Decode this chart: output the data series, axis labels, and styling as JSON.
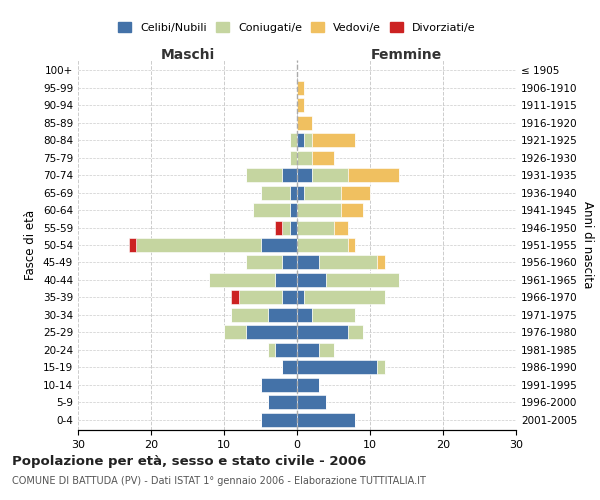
{
  "age_groups": [
    "0-4",
    "5-9",
    "10-14",
    "15-19",
    "20-24",
    "25-29",
    "30-34",
    "35-39",
    "40-44",
    "45-49",
    "50-54",
    "55-59",
    "60-64",
    "65-69",
    "70-74",
    "75-79",
    "80-84",
    "85-89",
    "90-94",
    "95-99",
    "100+"
  ],
  "birth_years": [
    "2001-2005",
    "1996-2000",
    "1991-1995",
    "1986-1990",
    "1981-1985",
    "1976-1980",
    "1971-1975",
    "1966-1970",
    "1961-1965",
    "1956-1960",
    "1951-1955",
    "1946-1950",
    "1941-1945",
    "1936-1940",
    "1931-1935",
    "1926-1930",
    "1921-1925",
    "1916-1920",
    "1911-1915",
    "1906-1910",
    "≤ 1905"
  ],
  "colors": {
    "celibi": "#4472a8",
    "coniugati": "#c5d5a0",
    "vedovi": "#f0c060",
    "divorziati": "#cc2222"
  },
  "male": {
    "celibi": [
      5,
      4,
      5,
      2,
      3,
      7,
      4,
      2,
      3,
      2,
      5,
      1,
      1,
      1,
      2,
      0,
      0,
      0,
      0,
      0,
      0
    ],
    "coniugati": [
      0,
      0,
      0,
      0,
      1,
      3,
      5,
      6,
      9,
      5,
      17,
      1,
      5,
      4,
      5,
      1,
      1,
      0,
      0,
      0,
      0
    ],
    "vedovi": [
      0,
      0,
      0,
      0,
      0,
      0,
      0,
      0,
      0,
      0,
      0,
      0,
      0,
      0,
      0,
      0,
      0,
      0,
      0,
      0,
      0
    ],
    "divorziati": [
      0,
      0,
      0,
      0,
      0,
      0,
      0,
      1,
      0,
      0,
      1,
      1,
      0,
      0,
      0,
      0,
      0,
      0,
      0,
      0,
      0
    ]
  },
  "female": {
    "nubili": [
      8,
      4,
      3,
      11,
      3,
      7,
      2,
      1,
      4,
      3,
      0,
      0,
      0,
      1,
      2,
      0,
      1,
      0,
      0,
      0,
      0
    ],
    "coniugati": [
      0,
      0,
      0,
      1,
      2,
      2,
      6,
      11,
      10,
      8,
      7,
      5,
      6,
      5,
      5,
      2,
      1,
      0,
      0,
      0,
      0
    ],
    "vedovi": [
      0,
      0,
      0,
      0,
      0,
      0,
      0,
      0,
      0,
      1,
      1,
      2,
      3,
      4,
      7,
      3,
      6,
      2,
      1,
      1,
      0
    ],
    "divorziati": [
      0,
      0,
      0,
      0,
      0,
      0,
      0,
      0,
      0,
      0,
      0,
      0,
      0,
      0,
      0,
      0,
      0,
      0,
      0,
      0,
      0
    ]
  },
  "title": "Popolazione per età, sesso e stato civile - 2006",
  "subtitle": "COMUNE DI BATTUDA (PV) - Dati ISTAT 1° gennaio 2006 - Elaborazione TUTTITALIA.IT",
  "xlabel_left": "Maschi",
  "xlabel_right": "Femmine",
  "ylabel_left": "Fasce di età",
  "ylabel_right": "Anni di nascita",
  "xlim": 30,
  "background_color": "#ffffff",
  "grid_color": "#cccccc"
}
